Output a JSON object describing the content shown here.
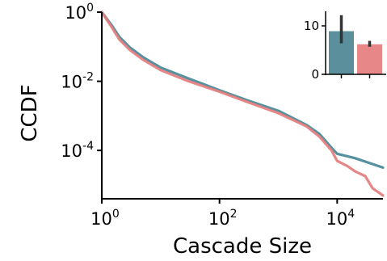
{
  "chart_data": [
    {
      "type": "line",
      "title": "",
      "xlabel": "Cascade Size",
      "ylabel": "CCDF",
      "xscale": "log",
      "yscale": "log",
      "xlim": [
        1,
        60000
      ],
      "ylim": [
        4e-06,
        1
      ],
      "grid": false,
      "legend": "none",
      "xticks": [
        {
          "base": "10",
          "exp": "0",
          "value": 1
        },
        {
          "base": "10",
          "exp": "2",
          "value": 100
        },
        {
          "base": "10",
          "exp": "4",
          "value": 10000
        }
      ],
      "yticks": [
        {
          "base": "10",
          "exp": "0",
          "value": 1
        },
        {
          "base": "10",
          "exp": "-2",
          "value": 0.01
        },
        {
          "base": "10",
          "exp": "-4",
          "value": 0.0001
        }
      ],
      "series": [
        {
          "color": "#4C8B9A",
          "x": [
            1,
            1.5,
            2,
            3,
            5,
            10,
            30,
            100,
            300,
            1000,
            3000,
            5000,
            8000,
            10000,
            20000,
            60000
          ],
          "y": [
            1,
            0.4,
            0.19,
            0.095,
            0.05,
            0.025,
            0.012,
            0.0055,
            0.0028,
            0.0014,
            0.00055,
            0.0003,
            0.00012,
            8e-05,
            6e-05,
            3.2e-05
          ]
        },
        {
          "color": "#E57F7F",
          "x": [
            1,
            1.5,
            2,
            3,
            5,
            10,
            30,
            100,
            300,
            1000,
            3000,
            5000,
            8000,
            10000,
            15000,
            20000,
            30000,
            40000,
            60000
          ],
          "y": [
            1,
            0.35,
            0.16,
            0.08,
            0.042,
            0.021,
            0.01,
            0.005,
            0.0025,
            0.0012,
            0.0005,
            0.00025,
            0.0001,
            5e-05,
            3.5e-05,
            2.5e-05,
            1.8e-05,
            8e-06,
            5e-06
          ]
        }
      ]
    },
    {
      "type": "bar",
      "title": "",
      "xlabel": "",
      "ylabel": "",
      "ylim": [
        0,
        13
      ],
      "yticks": [
        "0",
        "10"
      ],
      "categories": [
        "",
        ""
      ],
      "values": [
        8.9,
        6.2
      ],
      "error_low": [
        6.4,
        5.7
      ],
      "error_high": [
        12.2,
        6.9
      ],
      "colors": [
        "#5B8F9B",
        "#E88787"
      ]
    }
  ]
}
